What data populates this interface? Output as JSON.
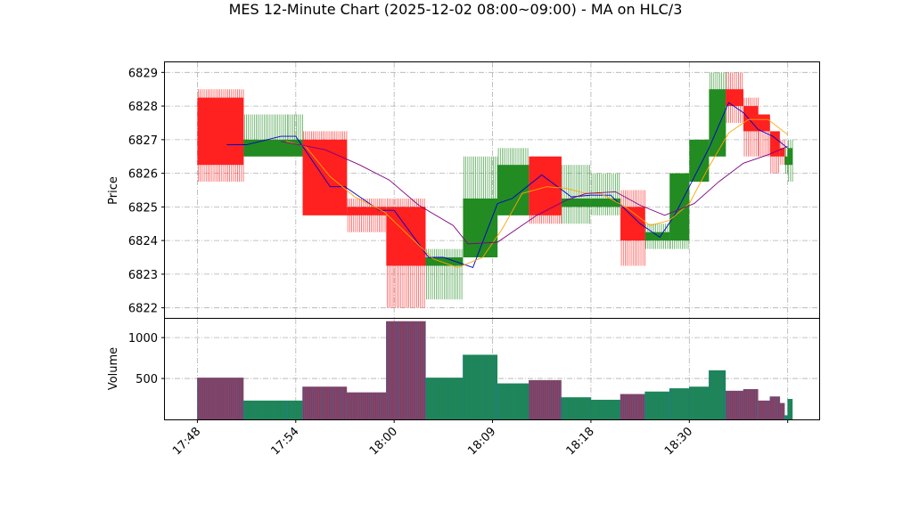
{
  "chart_data": {
    "type": "ohlc",
    "title": "MES 12-Minute Chart (2025-12-02 08:00~09:00) - MA on HLC/3",
    "price_panel": {
      "ylabel": "Price",
      "ylim": [
        6821.7,
        6829.3
      ],
      "yticks": [
        6822,
        6823,
        6824,
        6825,
        6826,
        6827,
        6828,
        6829
      ]
    },
    "volume_panel": {
      "ylabel": "Volume",
      "ylim": [
        0,
        1230
      ],
      "yticks": [
        500,
        1000
      ]
    },
    "x_axis": {
      "xlim": [
        0,
        66.5
      ],
      "tick_positions": [
        3.3,
        13.3,
        23.3,
        33.3,
        43.3,
        53.3,
        63.3
      ],
      "tick_labels": [
        "17:48",
        "17:54",
        "18:00",
        "18:09",
        "18:18",
        "18:30",
        ""
      ]
    },
    "colors": {
      "up": "#228b22",
      "down": "#ff2020",
      "volume_edge": "#1f77b4",
      "volume_fill": "#a0324e",
      "ma_blue": "#0000cc",
      "ma_orange": "#ffa500",
      "ma_purple": "#800080"
    },
    "bars": [
      {
        "x0": 3.3,
        "x1": 8.0,
        "o": 6828.25,
        "h": 6828.5,
        "l": 6825.75,
        "c": 6826.25,
        "v": 510
      },
      {
        "x0": 8.0,
        "x1": 12.5,
        "o": 6826.5,
        "h": 6827.75,
        "l": 6826.5,
        "c": 6827.0,
        "v": 230
      },
      {
        "x0": 12.5,
        "x1": 14.0,
        "o": 6826.5,
        "h": 6827.75,
        "l": 6826.5,
        "c": 6827.0,
        "v": 230
      },
      {
        "x0": 14.0,
        "x1": 18.5,
        "o": 6827.0,
        "h": 6827.25,
        "l": 6824.75,
        "c": 6824.75,
        "v": 400
      },
      {
        "x0": 18.5,
        "x1": 22.5,
        "o": 6825.0,
        "h": 6825.25,
        "l": 6824.25,
        "c": 6824.75,
        "v": 330
      },
      {
        "x0": 22.5,
        "x1": 26.5,
        "o": 6825.0,
        "h": 6825.25,
        "l": 6822.0,
        "c": 6823.25,
        "v": 1200
      },
      {
        "x0": 26.5,
        "x1": 30.3,
        "o": 6823.25,
        "h": 6823.75,
        "l": 6822.25,
        "c": 6823.5,
        "v": 510
      },
      {
        "x0": 30.3,
        "x1": 33.8,
        "o": 6823.5,
        "h": 6826.5,
        "l": 6823.5,
        "c": 6825.25,
        "v": 790
      },
      {
        "x0": 33.8,
        "x1": 37.0,
        "o": 6824.75,
        "h": 6826.75,
        "l": 6824.75,
        "c": 6826.25,
        "v": 440
      },
      {
        "x0": 37.0,
        "x1": 40.3,
        "o": 6826.5,
        "h": 6826.5,
        "l": 6824.5,
        "c": 6824.75,
        "v": 480
      },
      {
        "x0": 40.3,
        "x1": 43.3,
        "o": 6825.0,
        "h": 6826.25,
        "l": 6824.5,
        "c": 6825.25,
        "v": 270
      },
      {
        "x0": 43.3,
        "x1": 46.3,
        "o": 6825.0,
        "h": 6826.0,
        "l": 6824.75,
        "c": 6825.25,
        "v": 240
      },
      {
        "x0": 46.3,
        "x1": 48.8,
        "o": 6825.0,
        "h": 6825.5,
        "l": 6823.25,
        "c": 6824.0,
        "v": 310
      },
      {
        "x0": 48.8,
        "x1": 51.3,
        "o": 6824.0,
        "h": 6824.5,
        "l": 6823.75,
        "c": 6824.25,
        "v": 340
      },
      {
        "x0": 51.3,
        "x1": 53.3,
        "o": 6824.0,
        "h": 6826.0,
        "l": 6823.75,
        "c": 6826.0,
        "v": 380
      },
      {
        "x0": 53.3,
        "x1": 55.3,
        "o": 6825.75,
        "h": 6827.0,
        "l": 6825.75,
        "c": 6827.0,
        "v": 400
      },
      {
        "x0": 55.3,
        "x1": 57.0,
        "o": 6826.5,
        "h": 6829.0,
        "l": 6826.5,
        "c": 6828.5,
        "v": 600
      },
      {
        "x0": 57.0,
        "x1": 58.8,
        "o": 6828.5,
        "h": 6829.0,
        "l": 6827.5,
        "c": 6828.0,
        "v": 350
      },
      {
        "x0": 58.8,
        "x1": 60.3,
        "o": 6828.0,
        "h": 6828.25,
        "l": 6826.5,
        "c": 6827.25,
        "v": 370
      },
      {
        "x0": 60.3,
        "x1": 61.5,
        "o": 6827.75,
        "h": 6827.75,
        "l": 6826.5,
        "c": 6827.25,
        "v": 230
      },
      {
        "x0": 61.5,
        "x1": 62.5,
        "o": 6827.25,
        "h": 6827.25,
        "l": 6826.0,
        "c": 6826.5,
        "v": 280
      },
      {
        "x0": 62.5,
        "x1": 63.0,
        "o": 6826.75,
        "h": 6827.0,
        "l": 6826.25,
        "c": 6826.5,
        "v": 200
      },
      {
        "x0": 63.0,
        "x1": 63.3,
        "o": 6826.25,
        "h": 6826.75,
        "l": 6826.0,
        "c": 6826.5,
        "v": 50
      },
      {
        "x0": 63.3,
        "x1": 63.8,
        "o": 6826.25,
        "h": 6827.0,
        "l": 6825.75,
        "c": 6826.75,
        "v": 250
      }
    ],
    "series": [
      {
        "color": "#0000cc",
        "width": 0.9,
        "points": [
          [
            6.3,
            6826.85
          ],
          [
            8.3,
            6826.85
          ],
          [
            11.8,
            6827.1
          ],
          [
            13.3,
            6827.1
          ],
          [
            16.8,
            6825.6
          ],
          [
            18.3,
            6825.6
          ],
          [
            21.8,
            6824.9
          ],
          [
            23.3,
            6824.9
          ],
          [
            26.8,
            6823.5
          ],
          [
            28.3,
            6823.5
          ],
          [
            31.3,
            6823.2
          ],
          [
            33.8,
            6825.1
          ],
          [
            35.3,
            6825.25
          ],
          [
            38.3,
            6825.95
          ],
          [
            41.3,
            6825.3
          ],
          [
            43.3,
            6825.35
          ],
          [
            45.3,
            6825.35
          ],
          [
            48.3,
            6824.5
          ],
          [
            50.3,
            6824.1
          ],
          [
            51.8,
            6824.75
          ],
          [
            53.3,
            6825.6
          ],
          [
            55.3,
            6826.75
          ],
          [
            57.3,
            6828.1
          ],
          [
            58.8,
            6827.8
          ],
          [
            60.3,
            6827.3
          ],
          [
            61.8,
            6827.1
          ],
          [
            63.3,
            6826.75
          ]
        ]
      },
      {
        "color": "#ffa500",
        "width": 0.9,
        "points": [
          [
            12.3,
            6826.95
          ],
          [
            14.3,
            6826.8
          ],
          [
            16.8,
            6825.9
          ],
          [
            19.3,
            6825.3
          ],
          [
            22.3,
            6824.85
          ],
          [
            25.3,
            6824.0
          ],
          [
            27.3,
            6823.45
          ],
          [
            29.8,
            6823.2
          ],
          [
            32.3,
            6823.5
          ],
          [
            34.3,
            6824.35
          ],
          [
            36.3,
            6825.4
          ],
          [
            38.8,
            6825.6
          ],
          [
            40.8,
            6825.55
          ],
          [
            42.8,
            6825.4
          ],
          [
            44.3,
            6825.4
          ],
          [
            46.8,
            6825.0
          ],
          [
            49.3,
            6824.45
          ],
          [
            51.3,
            6824.6
          ],
          [
            53.3,
            6825.1
          ],
          [
            55.3,
            6826.2
          ],
          [
            57.3,
            6827.2
          ],
          [
            59.3,
            6827.6
          ],
          [
            61.3,
            6827.6
          ],
          [
            63.3,
            6827.15
          ]
        ]
      },
      {
        "color": "#800080",
        "width": 0.9,
        "points": [
          [
            11.8,
            6826.95
          ],
          [
            16.3,
            6826.7
          ],
          [
            19.8,
            6826.25
          ],
          [
            22.8,
            6825.8
          ],
          [
            25.8,
            6825.05
          ],
          [
            29.3,
            6824.45
          ],
          [
            30.8,
            6823.9
          ],
          [
            33.8,
            6823.95
          ],
          [
            37.8,
            6824.75
          ],
          [
            40.8,
            6825.2
          ],
          [
            42.8,
            6825.4
          ],
          [
            45.8,
            6825.45
          ],
          [
            48.3,
            6825.05
          ],
          [
            50.8,
            6824.75
          ],
          [
            53.8,
            6825.1
          ],
          [
            56.3,
            6825.75
          ],
          [
            58.8,
            6826.3
          ],
          [
            61.3,
            6826.55
          ],
          [
            63.3,
            6826.8
          ]
        ]
      }
    ]
  }
}
